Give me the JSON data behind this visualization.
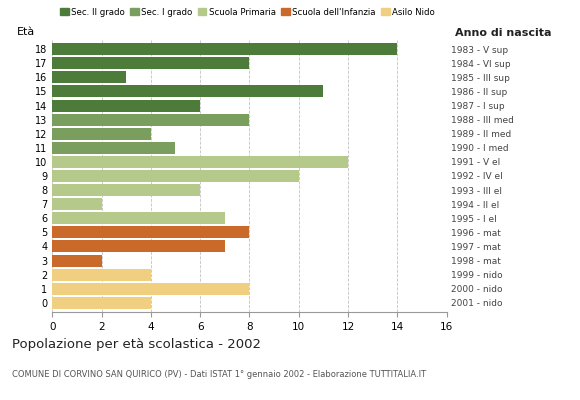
{
  "ages": [
    18,
    17,
    16,
    15,
    14,
    13,
    12,
    11,
    10,
    9,
    8,
    7,
    6,
    5,
    4,
    3,
    2,
    1,
    0
  ],
  "values": [
    14,
    8,
    3,
    11,
    6,
    8,
    4,
    5,
    12,
    10,
    6,
    2,
    7,
    8,
    7,
    2,
    4,
    8,
    4
  ],
  "categories": [
    "Sec. II grado",
    "Sec. II grado",
    "Sec. II grado",
    "Sec. II grado",
    "Sec. II grado",
    "Sec. I grado",
    "Sec. I grado",
    "Sec. I grado",
    "Scuola Primaria",
    "Scuola Primaria",
    "Scuola Primaria",
    "Scuola Primaria",
    "Scuola Primaria",
    "Scuola dell'Infanzia",
    "Scuola dell'Infanzia",
    "Scuola dell'Infanzia",
    "Asilo Nido",
    "Asilo Nido",
    "Asilo Nido"
  ],
  "anno_nascita": [
    "1983 - V sup",
    "1984 - VI sup",
    "1985 - III sup",
    "1986 - II sup",
    "1987 - I sup",
    "1988 - III med",
    "1989 - II med",
    "1990 - I med",
    "1991 - V el",
    "1992 - IV el",
    "1993 - III el",
    "1994 - II el",
    "1995 - I el",
    "1996 - mat",
    "1997 - mat",
    "1998 - mat",
    "1999 - nido",
    "2000 - nido",
    "2001 - nido"
  ],
  "colors": {
    "Sec. II grado": "#4d7c3a",
    "Sec. I grado": "#7a9e5e",
    "Scuola Primaria": "#b5c98a",
    "Scuola dell'Infanzia": "#c96a2a",
    "Asilo Nido": "#f0d080"
  },
  "legend_order": [
    "Sec. II grado",
    "Sec. I grado",
    "Scuola Primaria",
    "Scuola dell'Infanzia",
    "Asilo Nido"
  ],
  "title": "Popolazione per età scolastica - 2002",
  "subtitle": "COMUNE DI CORVINO SAN QUIRICO (PV) - Dati ISTAT 1° gennaio 2002 - Elaborazione TUTTITALIA.IT",
  "ylabel_text": "Età",
  "xlabel_right": "Anno di nascita",
  "xlim": [
    0,
    16
  ],
  "xticks": [
    0,
    2,
    4,
    6,
    8,
    10,
    12,
    14,
    16
  ],
  "background_color": "#ffffff",
  "grid_color": "#bbbbbb"
}
